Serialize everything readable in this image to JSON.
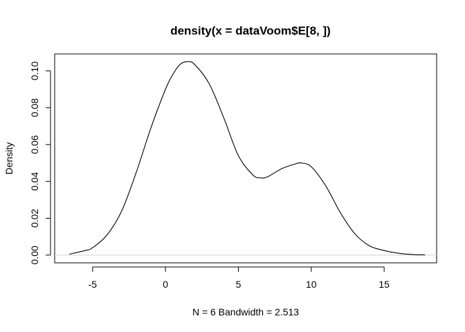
{
  "chart_data": {
    "type": "line",
    "title": "density(x = dataVoom$E[8, ])",
    "xlabel": "N = 6   Bandwidth = 2.513",
    "ylabel": "Density",
    "xlim": [
      -7.6,
      18.6
    ],
    "ylim": [
      -0.0042,
      0.1092
    ],
    "xticks": [
      -5,
      0,
      5,
      10,
      15
    ],
    "yticks": [
      0.0,
      0.02,
      0.04,
      0.06,
      0.08,
      0.1
    ],
    "xtick_labels": [
      "-5",
      "0",
      "5",
      "10",
      "15"
    ],
    "ytick_labels": [
      "0.00",
      "0.02",
      "0.04",
      "0.06",
      "0.08",
      "0.10"
    ],
    "grid": false,
    "baseline": 0,
    "series": [
      {
        "x": [
          -6.6,
          -5.5,
          -5.0,
          -4.0,
          -3.0,
          -2.0,
          -1.0,
          0.0,
          0.5,
          1.0,
          1.5,
          2.0,
          3.0,
          4.0,
          5.0,
          6.0,
          6.5,
          7.0,
          8.0,
          9.0,
          9.3,
          10.0,
          11.0,
          12.0,
          13.0,
          14.0,
          15.0,
          16.0,
          17.0,
          17.8
        ],
        "y": [
          0.0005,
          0.0025,
          0.004,
          0.011,
          0.024,
          0.045,
          0.069,
          0.09,
          0.098,
          0.1035,
          0.105,
          0.1035,
          0.093,
          0.0745,
          0.054,
          0.0435,
          0.042,
          0.0425,
          0.047,
          0.0497,
          0.05,
          0.048,
          0.0375,
          0.023,
          0.0115,
          0.005,
          0.0025,
          0.001,
          0.0003,
          0.0001
        ]
      }
    ]
  }
}
